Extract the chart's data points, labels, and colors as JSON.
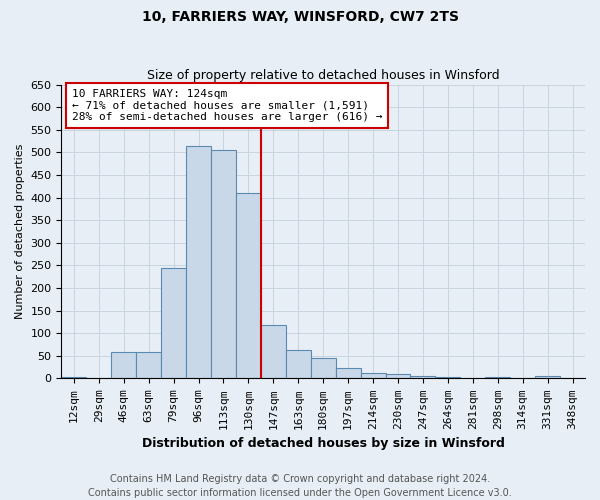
{
  "title1": "10, FARRIERS WAY, WINSFORD, CW7 2TS",
  "title2": "Size of property relative to detached houses in Winsford",
  "xlabel": "Distribution of detached houses by size in Winsford",
  "ylabel": "Number of detached properties",
  "bins": [
    "12sqm",
    "29sqm",
    "46sqm",
    "63sqm",
    "79sqm",
    "96sqm",
    "113sqm",
    "130sqm",
    "147sqm",
    "163sqm",
    "180sqm",
    "197sqm",
    "214sqm",
    "230sqm",
    "247sqm",
    "264sqm",
    "281sqm",
    "298sqm",
    "314sqm",
    "331sqm",
    "348sqm"
  ],
  "values": [
    3,
    0,
    58,
    58,
    245,
    515,
    505,
    410,
    118,
    62,
    45,
    22,
    12,
    9,
    6,
    4,
    0,
    3,
    0,
    5,
    0
  ],
  "bar_color": "#c8d8e8",
  "bar_edge_color": "#5a8ab0",
  "grid_color": "#c8d4e0",
  "vline_x_idx": 7.5,
  "vline_color": "#cc0000",
  "annotation_text": "10 FARRIERS WAY: 124sqm\n← 71% of detached houses are smaller (1,591)\n28% of semi-detached houses are larger (616) →",
  "annotation_box_color": "#ffffff",
  "annotation_box_edge": "#cc0000",
  "footer1": "Contains HM Land Registry data © Crown copyright and database right 2024.",
  "footer2": "Contains public sector information licensed under the Open Government Licence v3.0.",
  "ylim": [
    0,
    650
  ],
  "yticks": [
    0,
    50,
    100,
    150,
    200,
    250,
    300,
    350,
    400,
    450,
    500,
    550,
    600,
    650
  ],
  "title1_fontsize": 10,
  "title2_fontsize": 9,
  "xlabel_fontsize": 9,
  "ylabel_fontsize": 8,
  "tick_fontsize": 8,
  "footer_fontsize": 7,
  "background_color": "#e8eef5"
}
